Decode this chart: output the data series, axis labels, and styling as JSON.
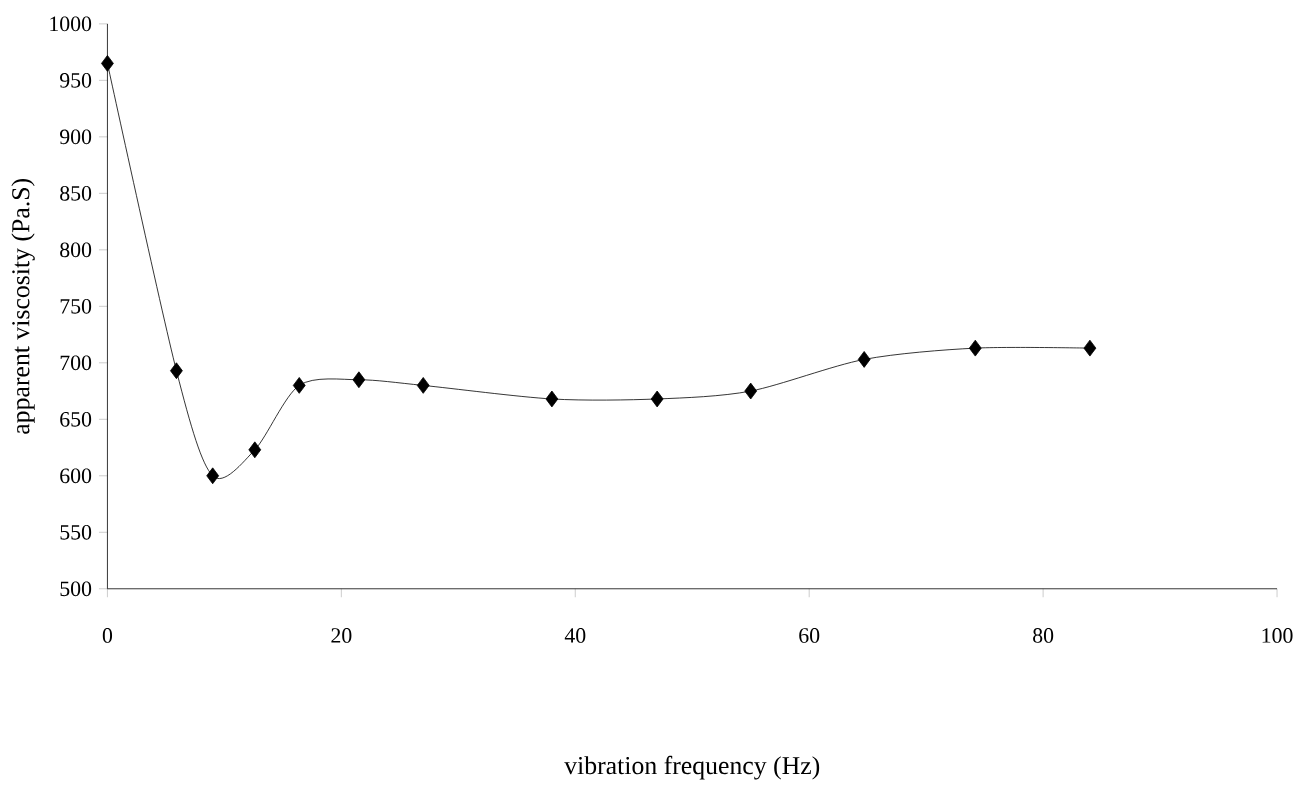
{
  "chart_data": {
    "type": "line",
    "xlabel": "vibration frequency (Hz)",
    "ylabel": "apparent viscosity (Pa.S)",
    "x": [
      0,
      5.9,
      9,
      12.6,
      16.4,
      21.5,
      27,
      38,
      47,
      55,
      64.7,
      74.2,
      84
    ],
    "values": [
      965,
      693,
      600,
      623,
      680,
      685,
      680,
      668,
      668,
      675,
      703,
      713,
      713
    ],
    "color": "#000000",
    "marker": "diamond",
    "line_style": "solid",
    "xlim": [
      0,
      100
    ],
    "xticks": [
      0,
      20,
      40,
      60,
      80,
      100
    ],
    "ylim": [
      500,
      1000
    ],
    "yticks": [
      500,
      550,
      600,
      650,
      700,
      750,
      800,
      850,
      900,
      950,
      1000
    ]
  }
}
